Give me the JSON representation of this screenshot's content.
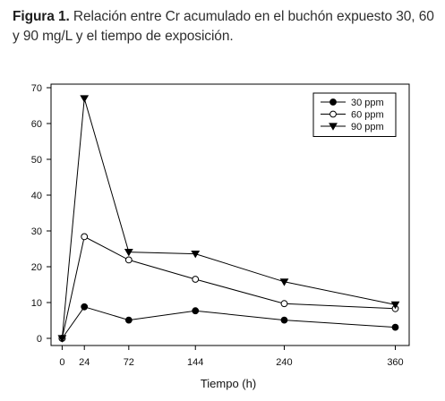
{
  "caption": {
    "label": "Figura 1.",
    "text": "Relación entre Cr acumulado en el buchón expuesto 30, 60 y 90 mg/L y el tiempo de exposición."
  },
  "chart_data": {
    "type": "line",
    "title": "",
    "xlabel": "Tiempo (h)",
    "ylabel": "",
    "x": [
      0,
      24,
      72,
      144,
      240,
      360
    ],
    "x_ticks": [
      "0",
      "24",
      "72",
      "144",
      "240",
      "360"
    ],
    "y_ticks": [
      "0",
      "10",
      "20",
      "30",
      "40",
      "50",
      "60",
      "70"
    ],
    "xlim": [
      -12,
      375
    ],
    "ylim": [
      -2,
      71
    ],
    "legend_position": "top-right",
    "series": [
      {
        "name": "30 ppm",
        "marker": "filled-circle",
        "values": [
          0,
          8.8,
          5.1,
          7.7,
          5.1,
          3.1
        ]
      },
      {
        "name": "60 ppm",
        "marker": "open-circle",
        "values": [
          0,
          28.4,
          21.9,
          16.5,
          9.7,
          8.3
        ]
      },
      {
        "name": "90 ppm",
        "marker": "filled-triangle-down",
        "values": [
          0,
          67.0,
          24.1,
          23.6,
          15.8,
          9.4
        ]
      }
    ],
    "colors": {
      "line": "#000000",
      "marker_fill": "#000000",
      "background": "#ffffff"
    }
  }
}
